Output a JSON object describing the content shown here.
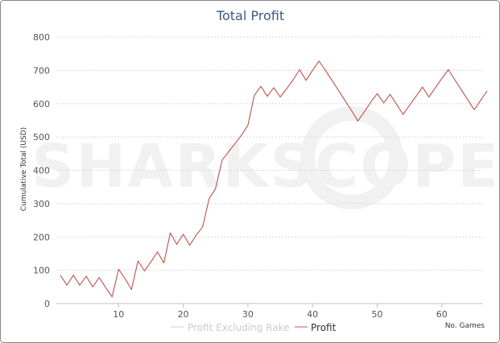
{
  "chart_data": {
    "type": "line",
    "title": "Total Profit",
    "xlabel": "No. Games",
    "ylabel": "Cumulative Total (USD)",
    "xlim": [
      1,
      67
    ],
    "ylim": [
      0,
      800
    ],
    "x_ticks": [
      10,
      20,
      30,
      40,
      50,
      60
    ],
    "y_ticks": [
      0,
      100,
      200,
      300,
      400,
      500,
      600,
      700,
      800
    ],
    "grid": true,
    "legend_position": "bottom",
    "watermark": "SHARKSCOPE",
    "series": [
      {
        "name": "Profit Excluding Rake",
        "color": "#cccccc",
        "values": []
      },
      {
        "name": "Profit",
        "color": "#c0504d",
        "x": [
          1,
          2,
          3,
          4,
          5,
          6,
          7,
          8,
          9,
          10,
          11,
          12,
          13,
          14,
          15,
          16,
          17,
          18,
          19,
          20,
          21,
          22,
          23,
          24,
          25,
          26,
          27,
          28,
          29,
          30,
          31,
          32,
          33,
          34,
          35,
          36,
          37,
          38,
          39,
          40,
          41,
          42,
          43,
          44,
          45,
          46,
          47,
          48,
          49,
          50,
          51,
          52,
          53,
          54,
          55,
          56,
          57,
          58,
          59,
          60,
          61,
          62,
          63,
          64,
          65,
          66,
          67
        ],
        "values": [
          85,
          55,
          85,
          55,
          82,
          50,
          78,
          48,
          20,
          103,
          75,
          42,
          128,
          98,
          125,
          155,
          122,
          212,
          178,
          208,
          175,
          205,
          230,
          315,
          345,
          430,
          455,
          480,
          505,
          535,
          625,
          652,
          622,
          648,
          620,
          645,
          672,
          702,
          670,
          700,
          728,
          700,
          670,
          640,
          610,
          580,
          548,
          575,
          605,
          630,
          602,
          628,
          598,
          568,
          595,
          622,
          650,
          620,
          648,
          676,
          702,
          672,
          642,
          612,
          582,
          610,
          638
        ]
      }
    ]
  }
}
